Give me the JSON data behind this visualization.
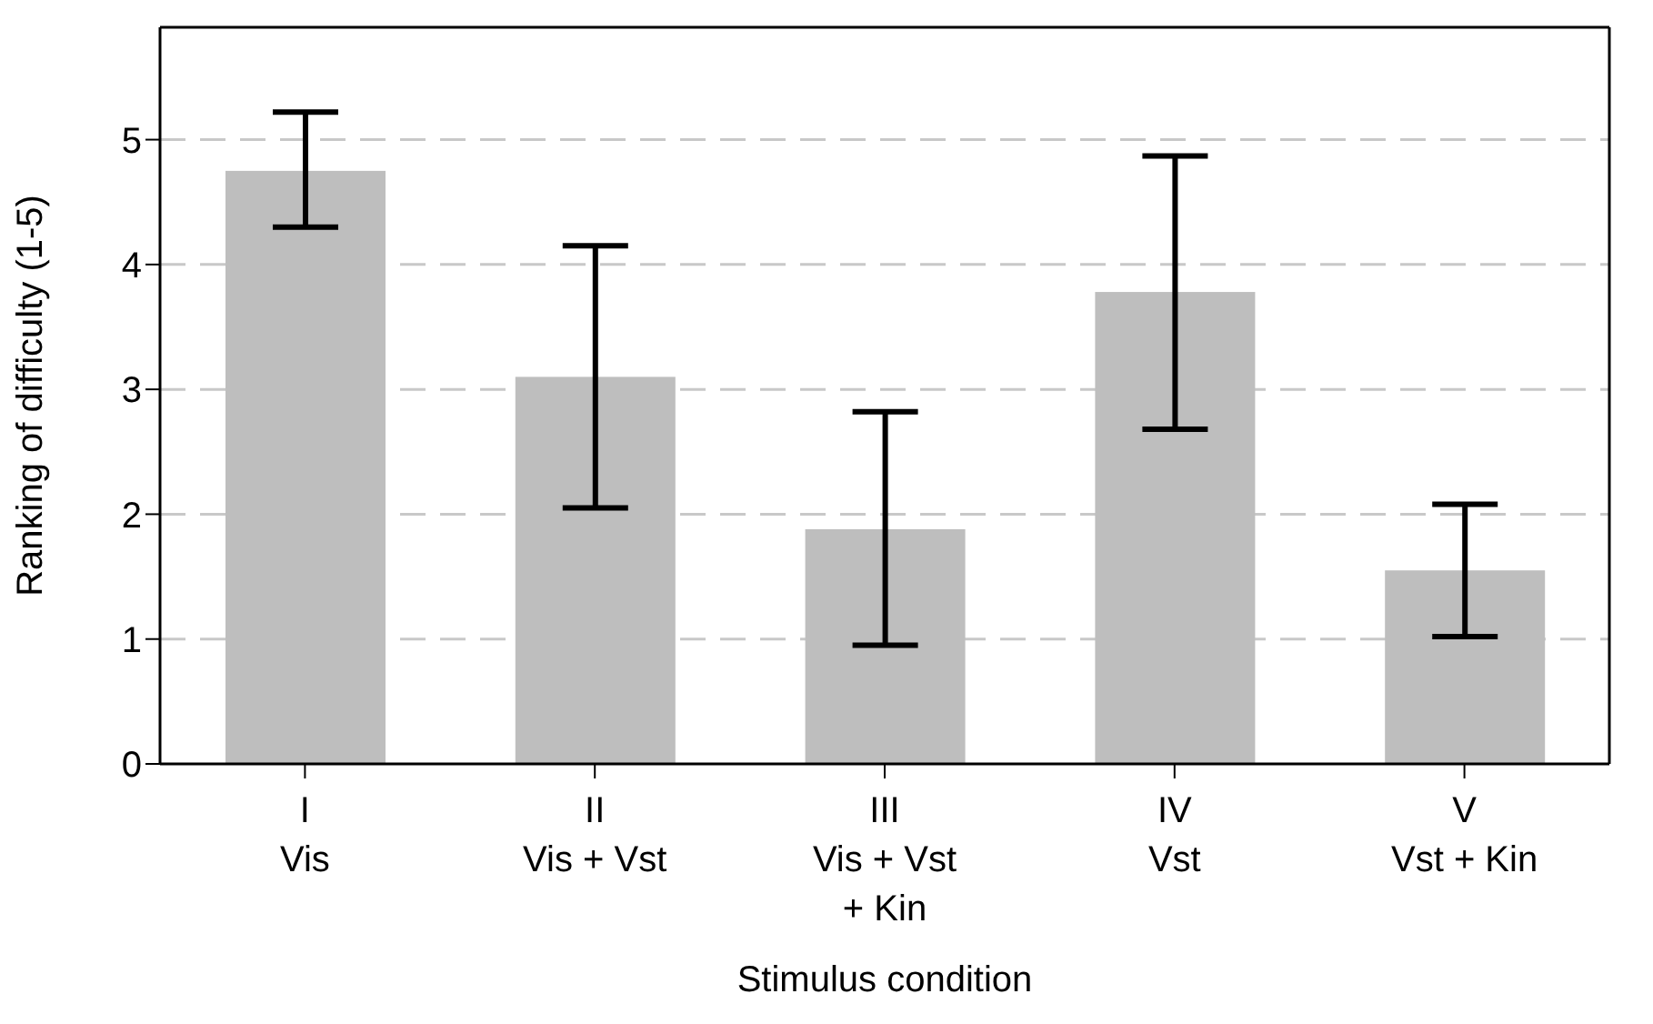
{
  "chart_data": {
    "type": "bar",
    "xlabel": "Stimulus condition",
    "ylabel": "Ranking of difficulty (1-5)",
    "categories": [
      "I\nVis",
      "II\nVis + Vst",
      "III\nVis + Vst\n+ Kin",
      "IV\nVst",
      "V\nVst + Kin"
    ],
    "values": [
      4.75,
      3.1,
      1.88,
      3.78,
      1.55
    ],
    "errors": [
      [
        4.3,
        5.22
      ],
      [
        2.05,
        4.15
      ],
      [
        0.95,
        2.82
      ],
      [
        2.68,
        4.87
      ],
      [
        1.02,
        2.08
      ]
    ],
    "color": "#bebebe",
    "ylim": [
      0,
      5.9
    ],
    "yticks": [
      0,
      1,
      2,
      3,
      4,
      5
    ],
    "grid": "y"
  }
}
